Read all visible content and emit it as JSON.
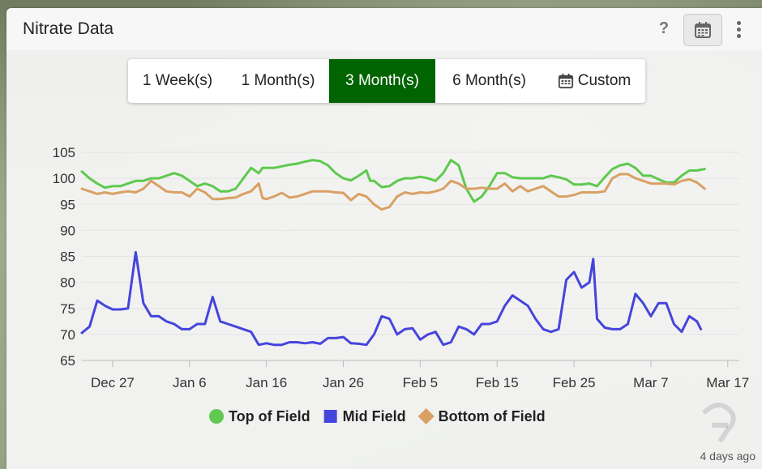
{
  "widget": {
    "title": "Nitrate Data",
    "help_label": "?",
    "calendar_icon": "calendar-icon",
    "menu_icon": "vertical-ellipsis-icon",
    "status_text": "4 days ago"
  },
  "range": {
    "options": [
      {
        "label": "1 Week(s)",
        "active": false
      },
      {
        "label": "1 Month(s)",
        "active": false
      },
      {
        "label": "3 Month(s)",
        "active": true
      },
      {
        "label": "6 Month(s)",
        "active": false
      },
      {
        "label": "Custom",
        "active": false,
        "icon": "calendar-icon"
      }
    ],
    "active_color": "#006400"
  },
  "chart_data": {
    "type": "line",
    "title": "",
    "xlabel": "",
    "ylabel": "",
    "ylim": [
      65,
      105
    ],
    "yticks": [
      65,
      70,
      75,
      80,
      85,
      90,
      95,
      100,
      105
    ],
    "x_labels": [
      "Dec 27",
      "Jan 6",
      "Jan 16",
      "Jan 26",
      "Feb 5",
      "Feb 15",
      "Feb 25",
      "Mar 7",
      "Mar 17"
    ],
    "x_label_days": [
      0,
      10,
      20,
      30,
      40,
      50,
      60,
      70,
      80
    ],
    "x_range_days": [
      -4,
      81.5
    ],
    "legend_position": "bottom",
    "grid": true,
    "series": [
      {
        "name": "Top of Field",
        "color": "#5ec94e",
        "marker": "circle",
        "points": [
          [
            -4,
            101.3
          ],
          [
            -3,
            100
          ],
          [
            -2,
            99
          ],
          [
            -1,
            98.2
          ],
          [
            0,
            98.5
          ],
          [
            1,
            98.5
          ],
          [
            2,
            99
          ],
          [
            3,
            99.5
          ],
          [
            4,
            99.5
          ],
          [
            5,
            100
          ],
          [
            6,
            100
          ],
          [
            7,
            100.5
          ],
          [
            8,
            101
          ],
          [
            9,
            100.5
          ],
          [
            10,
            99.5
          ],
          [
            11,
            98.5
          ],
          [
            12,
            99
          ],
          [
            13,
            98.5
          ],
          [
            14,
            97.5
          ],
          [
            15,
            97.5
          ],
          [
            16,
            98
          ],
          [
            17,
            100
          ],
          [
            18,
            102
          ],
          [
            19,
            101
          ],
          [
            19.5,
            102
          ],
          [
            20,
            102
          ],
          [
            21,
            102
          ],
          [
            22,
            102.3
          ],
          [
            23,
            102.6
          ],
          [
            24,
            102.8
          ],
          [
            25,
            103.2
          ],
          [
            26,
            103.5
          ],
          [
            27,
            103.3
          ],
          [
            28,
            102.5
          ],
          [
            29,
            101
          ],
          [
            30,
            100
          ],
          [
            31,
            99.6
          ],
          [
            32,
            100.5
          ],
          [
            33,
            101.5
          ],
          [
            33.5,
            99.5
          ],
          [
            34,
            99.5
          ],
          [
            35,
            98.3
          ],
          [
            36,
            98.5
          ],
          [
            37,
            99.5
          ],
          [
            38,
            100
          ],
          [
            39,
            100
          ],
          [
            40,
            100.3
          ],
          [
            41,
            100
          ],
          [
            42,
            99.5
          ],
          [
            43,
            101
          ],
          [
            44,
            103.5
          ],
          [
            45,
            102.5
          ],
          [
            46,
            98
          ],
          [
            47,
            95.5
          ],
          [
            48,
            96.5
          ],
          [
            49,
            98.5
          ],
          [
            50,
            101
          ],
          [
            51,
            101
          ],
          [
            52,
            100.2
          ],
          [
            53,
            100
          ],
          [
            54,
            100
          ],
          [
            55,
            100
          ],
          [
            56,
            100
          ],
          [
            57,
            100.5
          ],
          [
            58,
            100.2
          ],
          [
            59,
            99.8
          ],
          [
            60,
            98.8
          ],
          [
            61,
            98.8
          ],
          [
            62,
            99
          ],
          [
            63,
            98.5
          ],
          [
            64,
            100.2
          ],
          [
            65,
            101.8
          ],
          [
            66,
            102.5
          ],
          [
            67,
            102.8
          ],
          [
            68,
            102
          ],
          [
            69,
            100.5
          ],
          [
            70,
            100.5
          ],
          [
            71,
            99.8
          ],
          [
            72,
            99.2
          ],
          [
            73,
            99.2
          ],
          [
            74,
            100.5
          ],
          [
            75,
            101.5
          ],
          [
            76,
            101.5
          ],
          [
            77,
            101.8
          ]
        ]
      },
      {
        "name": "Mid Field",
        "color": "#4545dc",
        "marker": "square",
        "points": [
          [
            -4,
            70.3
          ],
          [
            -3,
            71.5
          ],
          [
            -2,
            76.5
          ],
          [
            -1,
            75.5
          ],
          [
            0,
            74.8
          ],
          [
            1,
            74.8
          ],
          [
            2,
            75
          ],
          [
            3,
            85.8
          ],
          [
            4,
            76
          ],
          [
            5,
            73.5
          ],
          [
            6,
            73.5
          ],
          [
            7,
            72.5
          ],
          [
            8,
            72
          ],
          [
            9,
            71
          ],
          [
            10,
            71
          ],
          [
            11,
            72
          ],
          [
            12,
            72
          ],
          [
            13,
            77.2
          ],
          [
            14,
            72.5
          ],
          [
            15,
            72
          ],
          [
            16,
            71.5
          ],
          [
            17,
            71
          ],
          [
            18,
            70.5
          ],
          [
            19,
            68
          ],
          [
            20,
            68.3
          ],
          [
            21,
            68
          ],
          [
            22,
            68
          ],
          [
            23,
            68.5
          ],
          [
            24,
            68.5
          ],
          [
            25,
            68.3
          ],
          [
            26,
            68.5
          ],
          [
            27,
            68.2
          ],
          [
            28,
            69.3
          ],
          [
            29,
            69.3
          ],
          [
            30,
            69.5
          ],
          [
            31,
            68.3
          ],
          [
            32,
            68.2
          ],
          [
            33,
            68
          ],
          [
            34,
            70
          ],
          [
            35,
            73.5
          ],
          [
            36,
            73
          ],
          [
            37,
            70
          ],
          [
            38,
            71
          ],
          [
            39,
            71.2
          ],
          [
            40,
            69
          ],
          [
            41,
            70
          ],
          [
            42,
            70.5
          ],
          [
            43,
            68
          ],
          [
            44,
            68.5
          ],
          [
            45,
            71.5
          ],
          [
            46,
            71
          ],
          [
            47,
            70
          ],
          [
            48,
            72
          ],
          [
            49,
            72
          ],
          [
            50,
            72.5
          ],
          [
            51,
            75.5
          ],
          [
            52,
            77.5
          ],
          [
            53,
            76.5
          ],
          [
            54,
            75.5
          ],
          [
            55,
            73
          ],
          [
            56,
            71
          ],
          [
            57,
            70.5
          ],
          [
            58,
            71
          ],
          [
            59,
            80.5
          ],
          [
            60,
            82
          ],
          [
            61,
            79
          ],
          [
            62,
            80
          ],
          [
            62.5,
            84.5
          ],
          [
            63,
            73
          ],
          [
            64,
            71.3
          ],
          [
            65,
            71
          ],
          [
            66,
            71
          ],
          [
            67,
            72
          ],
          [
            68,
            77.8
          ],
          [
            69,
            76
          ],
          [
            70,
            73.5
          ],
          [
            71,
            76
          ],
          [
            72,
            76
          ],
          [
            73,
            72
          ],
          [
            74,
            70.5
          ],
          [
            75,
            73.5
          ],
          [
            76,
            72.5
          ],
          [
            76.5,
            71
          ]
        ]
      },
      {
        "name": "Bottom of Field",
        "color": "#d9a064",
        "marker": "diamond",
        "points": [
          [
            -4,
            98
          ],
          [
            -3,
            97.5
          ],
          [
            -2,
            97
          ],
          [
            -1,
            97.3
          ],
          [
            0,
            97
          ],
          [
            1,
            97.3
          ],
          [
            2,
            97.5
          ],
          [
            3,
            97.3
          ],
          [
            4,
            98
          ],
          [
            5,
            99.5
          ],
          [
            6,
            98.5
          ],
          [
            7,
            97.5
          ],
          [
            8,
            97.3
          ],
          [
            9,
            97.3
          ],
          [
            10,
            96.5
          ],
          [
            11,
            98
          ],
          [
            12,
            97.3
          ],
          [
            13,
            96
          ],
          [
            14,
            96
          ],
          [
            15,
            96.2
          ],
          [
            16,
            96.3
          ],
          [
            17,
            97
          ],
          [
            18,
            97.5
          ],
          [
            19,
            99
          ],
          [
            19.5,
            96.2
          ],
          [
            20,
            96
          ],
          [
            21,
            96.5
          ],
          [
            22,
            97.2
          ],
          [
            23,
            96.3
          ],
          [
            24,
            96.5
          ],
          [
            25,
            97
          ],
          [
            26,
            97.5
          ],
          [
            27,
            97.5
          ],
          [
            28,
            97.5
          ],
          [
            29,
            97.3
          ],
          [
            30,
            97.2
          ],
          [
            31,
            95.8
          ],
          [
            32,
            97
          ],
          [
            33,
            96.5
          ],
          [
            34,
            95
          ],
          [
            35,
            94
          ],
          [
            36,
            94.5
          ],
          [
            37,
            96.5
          ],
          [
            38,
            97.3
          ],
          [
            39,
            97
          ],
          [
            40,
            97.3
          ],
          [
            41,
            97.2
          ],
          [
            42,
            97.5
          ],
          [
            43,
            98
          ],
          [
            44,
            99.5
          ],
          [
            45,
            99
          ],
          [
            46,
            98
          ],
          [
            47,
            98
          ],
          [
            48,
            98.2
          ],
          [
            49,
            98
          ],
          [
            50,
            98
          ],
          [
            51,
            99
          ],
          [
            52,
            97.5
          ],
          [
            53,
            98.5
          ],
          [
            54,
            97.5
          ],
          [
            55,
            98
          ],
          [
            56,
            98.5
          ],
          [
            57,
            97.5
          ],
          [
            58,
            96.5
          ],
          [
            59,
            96.5
          ],
          [
            60,
            96.8
          ],
          [
            61,
            97.3
          ],
          [
            62,
            97.3
          ],
          [
            63,
            97.3
          ],
          [
            64,
            97.5
          ],
          [
            65,
            100
          ],
          [
            66,
            100.8
          ],
          [
            67,
            100.8
          ],
          [
            68,
            100
          ],
          [
            69,
            99.5
          ],
          [
            70,
            99
          ],
          [
            71,
            99
          ],
          [
            72,
            99
          ],
          [
            73,
            98.8
          ],
          [
            74,
            99.5
          ],
          [
            75,
            99.8
          ],
          [
            76,
            99.2
          ],
          [
            77,
            98
          ]
        ]
      }
    ]
  }
}
